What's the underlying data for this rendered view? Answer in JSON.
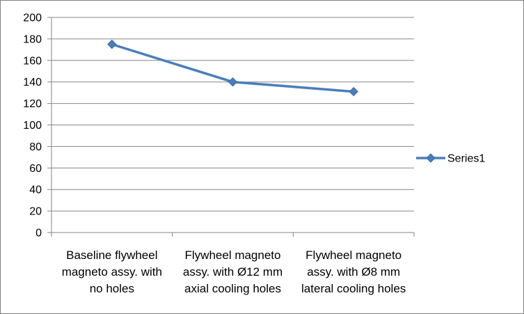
{
  "chart_data": {
    "type": "line",
    "title": "",
    "xlabel": "",
    "ylabel": "",
    "categories": [
      [
        "Baseline flywheel",
        "magneto assy. with",
        "no holes"
      ],
      [
        "Flywheel magneto",
        "assy. with Ø12 mm",
        "axial cooling holes"
      ],
      [
        "Flywheel magneto",
        "assy. with Ø8 mm",
        "lateral cooling holes"
      ]
    ],
    "series": [
      {
        "name": "Series1",
        "values": [
          175,
          140,
          131
        ],
        "color": "#4a7ebb",
        "marker": "diamond"
      }
    ],
    "ylim": [
      0,
      200
    ],
    "ytick_step": 20,
    "yticks": [
      "0",
      "20",
      "40",
      "60",
      "80",
      "100",
      "120",
      "140",
      "160",
      "180",
      "200"
    ],
    "grid": true,
    "legend": "right"
  }
}
